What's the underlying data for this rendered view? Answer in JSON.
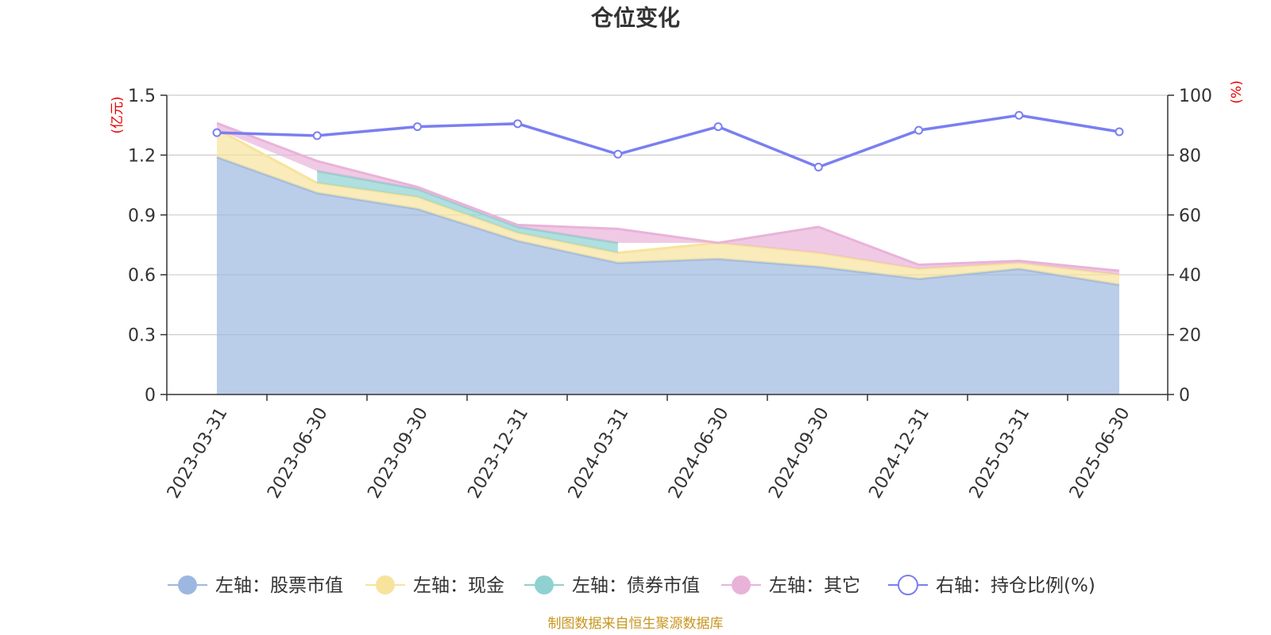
{
  "chart_data": {
    "type": "area",
    "title": "仓位变化",
    "categories": [
      "2023-03-31",
      "2023-06-30",
      "2023-09-30",
      "2023-12-31",
      "2024-03-31",
      "2024-06-30",
      "2024-09-30",
      "2024-12-31",
      "2025-03-31",
      "2025-06-30"
    ],
    "left_axis": {
      "unit": "(亿元)",
      "ylim": [
        0,
        1.5
      ],
      "ticks": [
        "0",
        "0.3",
        "0.6",
        "0.9",
        "1.2",
        "1.5"
      ]
    },
    "right_axis": {
      "unit": "(%)",
      "ylim": [
        0,
        100
      ],
      "ticks": [
        "0",
        "20",
        "40",
        "60",
        "80",
        "100"
      ]
    },
    "series": [
      {
        "name": "左轴：股票市值",
        "axis": "left",
        "kind": "area",
        "color": "#9db8e0",
        "values": [
          1.19,
          1.01,
          0.93,
          0.77,
          0.66,
          0.68,
          0.64,
          0.58,
          0.63,
          0.55
        ]
      },
      {
        "name": "左轴：现金",
        "axis": "left",
        "kind": "area",
        "color": "#f7e39c",
        "values": [
          0.14,
          0.05,
          0.06,
          0.04,
          0.05,
          0.08,
          0.07,
          0.05,
          0.03,
          0.05
        ]
      },
      {
        "name": "左轴：债券市值",
        "axis": "left",
        "kind": "area",
        "color": "#8fd1d1",
        "values": [
          null,
          0.06,
          0.04,
          0.03,
          0.05,
          null,
          null,
          null,
          null,
          null
        ]
      },
      {
        "name": "左轴：其它",
        "axis": "left",
        "kind": "area",
        "color": "#e9b3d9",
        "values": [
          0.03,
          0.05,
          0.01,
          0.01,
          0.07,
          0.0,
          0.13,
          0.02,
          0.01,
          0.02
        ]
      },
      {
        "name": "右轴：持仓比例(%)",
        "axis": "right",
        "kind": "line",
        "color": "#7a7ff0",
        "values": [
          87.5,
          86.5,
          89.5,
          90.5,
          80.3,
          89.5,
          76.0,
          88.3,
          93.3,
          87.8
        ]
      }
    ],
    "grid": true,
    "legend_position": "bottom"
  },
  "source_text": "制图数据来自恒生聚源数据库"
}
